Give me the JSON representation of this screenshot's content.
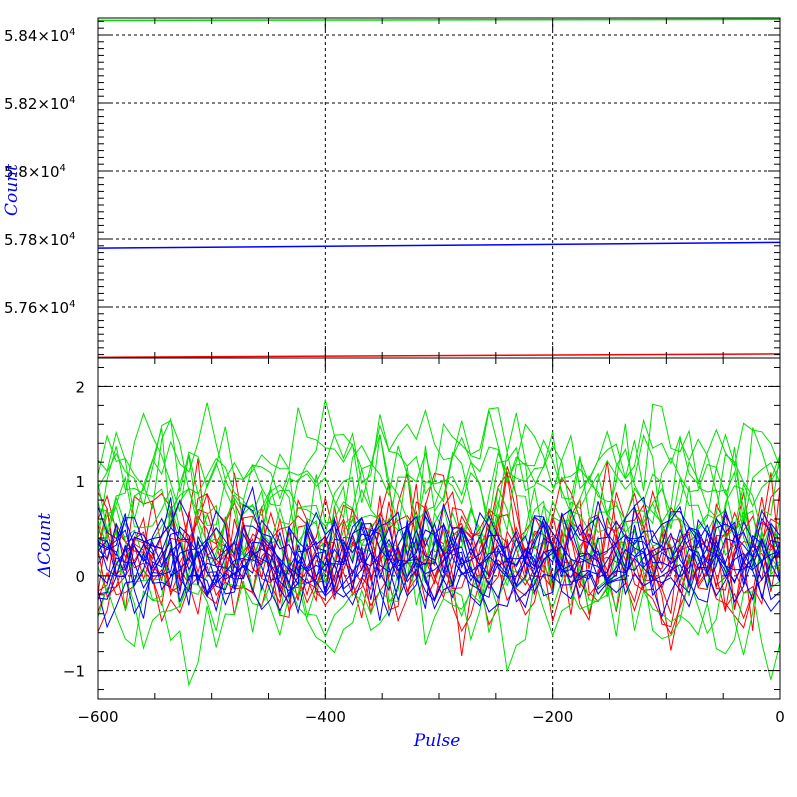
{
  "chart_data": [
    {
      "type": "line",
      "panel": "top",
      "ylabel": "Count",
      "xlabel": "",
      "xlim": [
        -600,
        0
      ],
      "ylim": [
        57450,
        58450
      ],
      "yticks": [
        {
          "value": 57600,
          "mant": "5.76",
          "exp": "4"
        },
        {
          "value": 57800,
          "mant": "5.78",
          "exp": "4"
        },
        {
          "value": 58000,
          "mant": "5.8",
          "exp": "4"
        },
        {
          "value": 58200,
          "mant": "5.82",
          "exp": "4"
        },
        {
          "value": 58400,
          "mant": "5.84",
          "exp": "4"
        }
      ],
      "xgrid": [
        -400,
        -200
      ],
      "grid": true,
      "series": [
        {
          "color": "#00e000",
          "x": [
            -600,
            0
          ],
          "y": [
            58443,
            58446
          ]
        },
        {
          "color": "#0000ff",
          "x": [
            -600,
            0
          ],
          "y": [
            57773,
            57790
          ]
        },
        {
          "color": "#ff0000",
          "x": [
            -600,
            0
          ],
          "y": [
            57452,
            57462
          ]
        }
      ]
    },
    {
      "type": "line",
      "panel": "bottom",
      "ylabel": "ΔCount",
      "xlabel": "Pulse",
      "xlim": [
        -600,
        0
      ],
      "ylim": [
        -1.3,
        2.3
      ],
      "xticks": [
        -600,
        -400,
        -200,
        0
      ],
      "xtick_labels": [
        "−600",
        "−400",
        "−200",
        "0"
      ],
      "yticks": [
        -1,
        0,
        1,
        2
      ],
      "ytick_labels": [
        "−1",
        "0",
        "1",
        "2"
      ],
      "grid": true,
      "sample_step": 8,
      "groups": [
        {
          "color": "#ff0000",
          "traces": 10,
          "baseline": [
            0.12,
            0.17,
            0.22,
            0.27,
            0.32,
            0.08,
            0.15,
            0.25,
            0.02,
            0.3
          ],
          "amplitude": 0.3,
          "seed": 11
        },
        {
          "color": "#00e000",
          "traces": 12,
          "baseline": [
            1.25,
            1.1,
            0.95,
            0.85,
            0.7,
            0.6,
            0.35,
            0.1,
            -0.15,
            -0.4,
            0.45,
            1.4
          ],
          "amplitude": 0.28,
          "seed": 23
        },
        {
          "color": "#0000ff",
          "traces": 12,
          "baseline": [
            0.05,
            0.1,
            0.15,
            0.2,
            0.25,
            0.3,
            0.35,
            0.12,
            0.22,
            0.08,
            0.18,
            0.28
          ],
          "amplitude": 0.22,
          "seed": 37
        }
      ]
    }
  ]
}
